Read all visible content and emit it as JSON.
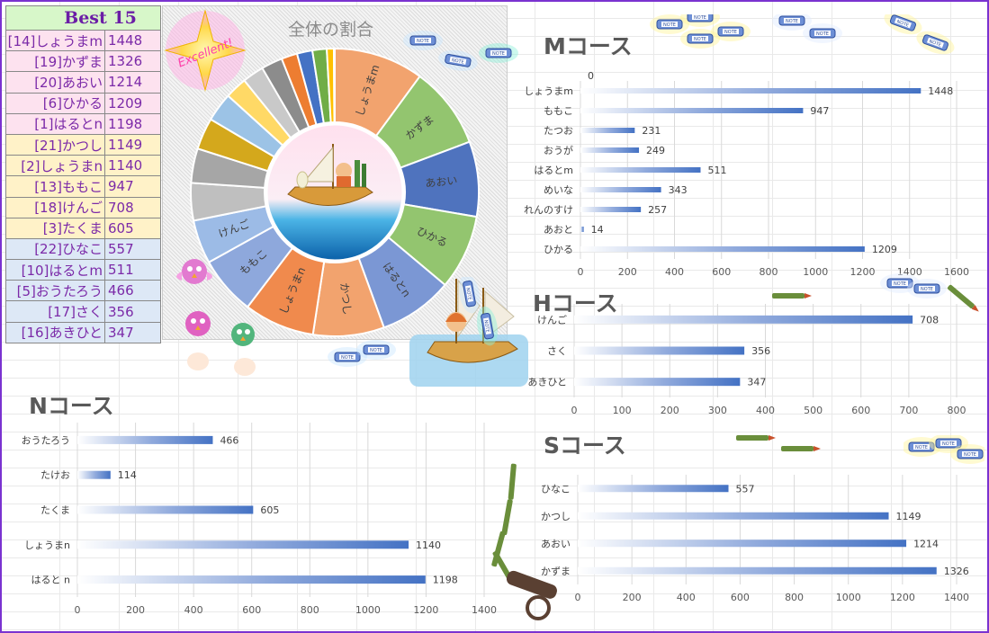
{
  "ranking": {
    "title": "Best 15",
    "rows": [
      {
        "name": "[14]しょうまm",
        "score": "1448",
        "bg": "pink"
      },
      {
        "name": "[19]かずま",
        "score": "1326",
        "bg": "pink"
      },
      {
        "name": "[20]あおい",
        "score": "1214",
        "bg": "pink"
      },
      {
        "name": "[6]ひかる",
        "score": "1209",
        "bg": "pink"
      },
      {
        "name": "[1]はるとn",
        "score": "1198",
        "bg": "pink"
      },
      {
        "name": "[21]かつし",
        "score": "1149",
        "bg": "yellow"
      },
      {
        "name": "[2]しょうまn",
        "score": "1140",
        "bg": "yellow"
      },
      {
        "name": "[13]ももこ",
        "score": "947",
        "bg": "yellow"
      },
      {
        "name": "[18]けんご",
        "score": "708",
        "bg": "yellow"
      },
      {
        "name": "[3]たくま",
        "score": "605",
        "bg": "yellow"
      },
      {
        "name": "[22]ひなこ",
        "score": "557",
        "bg": "blue"
      },
      {
        "name": "[10]はるとm",
        "score": "511",
        "bg": "blue"
      },
      {
        "name": "[5]おうたろう",
        "score": "466",
        "bg": "blue"
      },
      {
        "name": "[17]さく",
        "score": "356",
        "bg": "blue"
      },
      {
        "name": "[16]あきひと",
        "score": "347",
        "bg": "blue"
      }
    ]
  },
  "badge": {
    "text": "Excellent!"
  },
  "note_label": "NOTE",
  "chart_data": [
    {
      "type": "pie",
      "title": "全体の割合",
      "slices": [
        {
          "label": "しょうまm",
          "value": 1448,
          "color": "#f2a36e"
        },
        {
          "label": "かずま",
          "value": 1326,
          "color": "#93c56f"
        },
        {
          "label": "あおい",
          "value": 1214,
          "color": "#4f73be"
        },
        {
          "label": "ひかる",
          "value": 1209,
          "color": "#93c56f"
        },
        {
          "label": "はるとn",
          "value": 1198,
          "color": "#7b97d4"
        },
        {
          "label": "かつし",
          "value": 1149,
          "color": "#f2a36e"
        },
        {
          "label": "しょうまn",
          "value": 1140,
          "color": "#f08a4d"
        },
        {
          "label": "ももこ",
          "value": 947,
          "color": "#8ea8dc"
        },
        {
          "label": "けんご",
          "value": 708,
          "color": "#9cbbe6"
        },
        {
          "label": "",
          "value": 605,
          "color": "#bfbfbf"
        },
        {
          "label": "",
          "value": 557,
          "color": "#a6a6a6"
        },
        {
          "label": "",
          "value": 511,
          "color": "#d4a81c"
        },
        {
          "label": "",
          "value": 466,
          "color": "#9cc3e6"
        },
        {
          "label": "",
          "value": 356,
          "color": "#ffd966"
        },
        {
          "label": "",
          "value": 347,
          "color": "#c9c9c9"
        },
        {
          "label": "",
          "value": 343,
          "color": "#8c8c8c"
        },
        {
          "label": "",
          "value": 257,
          "color": "#ed7d31"
        },
        {
          "label": "",
          "value": 249,
          "color": "#4472c4"
        },
        {
          "label": "",
          "value": 231,
          "color": "#70ad47"
        },
        {
          "label": "",
          "value": 114,
          "color": "#ffc000"
        },
        {
          "label": "",
          "value": 14,
          "color": "#5b9bd5"
        }
      ]
    },
    {
      "type": "bar",
      "title": "Mコース",
      "top_label": "0",
      "categories": [
        "しょうまm",
        "ももこ",
        "たつお",
        "おうが",
        "はるとm",
        "めいな",
        "れんのすけ",
        "あおと",
        "ひかる"
      ],
      "values": [
        1448,
        947,
        231,
        249,
        511,
        343,
        257,
        14,
        1209
      ],
      "xlim": [
        0,
        1600
      ],
      "xticks": [
        0,
        200,
        400,
        600,
        800,
        1000,
        1200,
        1400,
        1600
      ]
    },
    {
      "type": "bar",
      "title": "Hコース",
      "categories": [
        "けんご",
        "さく",
        "あきひと"
      ],
      "values": [
        708,
        356,
        347
      ],
      "xlim": [
        0,
        800
      ],
      "xticks": [
        0,
        100,
        200,
        300,
        400,
        500,
        600,
        700,
        800
      ]
    },
    {
      "type": "bar",
      "title": "Nコース",
      "categories": [
        "おうたろう",
        "たけお",
        "たくま",
        "しょうまn",
        "はると n"
      ],
      "values": [
        466,
        114,
        605,
        1140,
        1198
      ],
      "xlim": [
        0,
        1400
      ],
      "xticks": [
        0,
        200,
        400,
        600,
        800,
        1000,
        1200,
        1400
      ]
    },
    {
      "type": "bar",
      "title": "Sコース",
      "categories": [
        "ひなこ",
        "かつし",
        "あおい",
        "かずま"
      ],
      "values": [
        557,
        1149,
        1214,
        1326
      ],
      "xlim": [
        0,
        1400
      ],
      "xticks": [
        0,
        200,
        400,
        600,
        800,
        1000,
        1200,
        1400
      ]
    }
  ]
}
